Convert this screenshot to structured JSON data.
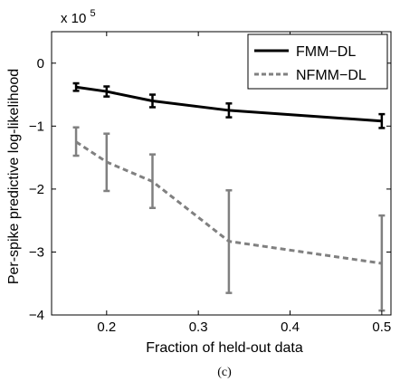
{
  "chart_data": {
    "type": "line",
    "xlabel": "Fraction of held-out data",
    "ylabel": "Per-spike predictive log-likelihood",
    "multiplier_base": "x 10",
    "multiplier_exp": "5",
    "caption": "(c)",
    "xlim": [
      0.14,
      0.51
    ],
    "ylim": [
      -4,
      0.5
    ],
    "x_ticks": [
      0.2,
      0.3,
      0.4,
      0.5
    ],
    "x_tick_labels": [
      "0.2",
      "0.3",
      "0.4",
      "0.5"
    ],
    "y_ticks": [
      0,
      -1,
      -2,
      -3,
      -4
    ],
    "y_tick_labels": [
      "0",
      "−1",
      "−2",
      "−3",
      "−4"
    ],
    "grid": false,
    "legend_position": "top-right",
    "series": [
      {
        "name": "FMM−DL",
        "color": "#000000",
        "style": "solid",
        "x": [
          0.1667,
          0.2,
          0.25,
          0.3333,
          0.5
        ],
        "y": [
          -0.38,
          -0.45,
          -0.6,
          -0.75,
          -0.92
        ],
        "err_low": [
          -0.44,
          -0.53,
          -0.7,
          -0.86,
          -1.03
        ],
        "err_high": [
          -0.32,
          -0.37,
          -0.5,
          -0.64,
          -0.81
        ]
      },
      {
        "name": "NFMM−DL",
        "color": "#808080",
        "style": "dashed",
        "x": [
          0.1667,
          0.2,
          0.25,
          0.3333,
          0.5
        ],
        "y": [
          -1.25,
          -1.57,
          -1.88,
          -2.83,
          -3.18
        ],
        "err_low": [
          -1.47,
          -2.03,
          -2.3,
          -3.65,
          -3.93
        ],
        "err_high": [
          -1.02,
          -1.12,
          -1.45,
          -2.02,
          -2.42
        ]
      }
    ]
  }
}
